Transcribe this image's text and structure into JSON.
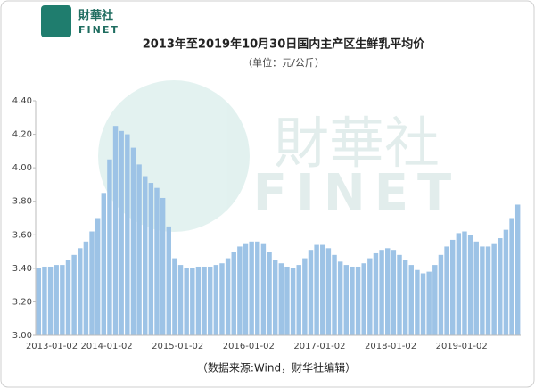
{
  "logo": {
    "name": "財華社",
    "brand": "FINET"
  },
  "chart_data": {
    "type": "bar",
    "title": "2013年至2019年10月30日国内主产区生鲜乳平均价",
    "subtitle": "（单位：元/公斤）",
    "source": "（数据来源:Wind，财华社编辑）",
    "color": "#9dc3e6",
    "categories": [
      "2013-01-02",
      null,
      null,
      null,
      null,
      null,
      null,
      null,
      null,
      null,
      null,
      null,
      "2014-01-02",
      null,
      null,
      null,
      null,
      null,
      null,
      null,
      null,
      null,
      null,
      null,
      "2015-01-02",
      null,
      null,
      null,
      null,
      null,
      null,
      null,
      null,
      null,
      null,
      null,
      "2016-01-02",
      null,
      null,
      null,
      null,
      null,
      null,
      null,
      null,
      null,
      null,
      null,
      "2017-01-02",
      null,
      null,
      null,
      null,
      null,
      null,
      null,
      null,
      null,
      null,
      null,
      "2018-01-02",
      null,
      null,
      null,
      null,
      null,
      null,
      null,
      null,
      null,
      null,
      null,
      "2019-01-02",
      null,
      null,
      null,
      null,
      null,
      null,
      null,
      null,
      null
    ],
    "values": [
      3.4,
      3.41,
      3.41,
      3.42,
      3.42,
      3.45,
      3.48,
      3.52,
      3.56,
      3.62,
      3.7,
      3.85,
      4.05,
      4.25,
      4.22,
      4.2,
      4.12,
      4.02,
      3.95,
      3.91,
      3.88,
      3.82,
      3.65,
      3.46,
      3.42,
      3.4,
      3.4,
      3.41,
      3.41,
      3.41,
      3.42,
      3.43,
      3.46,
      3.5,
      3.53,
      3.55,
      3.56,
      3.56,
      3.55,
      3.5,
      3.45,
      3.43,
      3.41,
      3.4,
      3.42,
      3.46,
      3.51,
      3.54,
      3.54,
      3.52,
      3.48,
      3.44,
      3.42,
      3.41,
      3.41,
      3.43,
      3.46,
      3.49,
      3.51,
      3.52,
      3.51,
      3.48,
      3.45,
      3.42,
      3.39,
      3.37,
      3.38,
      3.42,
      3.48,
      3.53,
      3.57,
      3.61,
      3.62,
      3.6,
      3.56,
      3.53,
      3.53,
      3.55,
      3.58,
      3.63,
      3.7,
      3.78
    ],
    "ylim": [
      3.0,
      4.4
    ],
    "yticks": [
      {
        "value": 3.0,
        "label": "3.00"
      },
      {
        "value": 3.2,
        "label": "3.20"
      },
      {
        "value": 3.4,
        "label": "3.40"
      },
      {
        "value": 3.6,
        "label": "3.60"
      },
      {
        "value": 3.8,
        "label": "3.80"
      },
      {
        "value": 4.0,
        "label": "4.00"
      },
      {
        "value": 4.2,
        "label": "4.20"
      },
      {
        "value": 4.4,
        "label": "4.40"
      }
    ],
    "grid": false
  }
}
